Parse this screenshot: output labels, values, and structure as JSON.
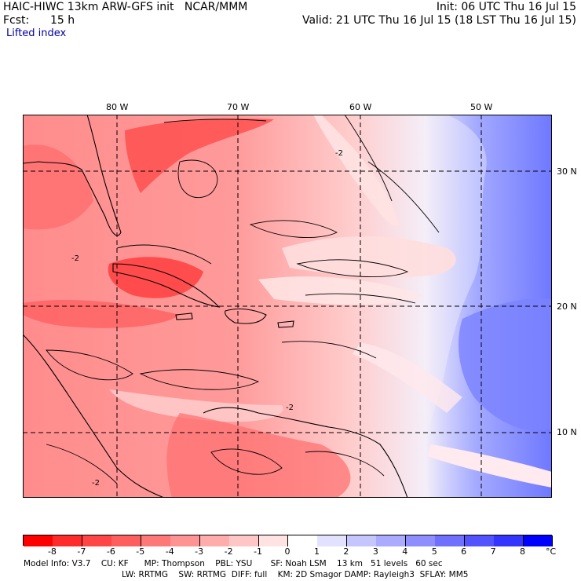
{
  "header": {
    "title_left": "HAIC-HIWC 13km ARW-GFS init   NCAR/MMM",
    "fcst_label": "Fcst:",
    "fcst_value": "15 h",
    "field_name": "Lifted index",
    "init": "Init: 06 UTC Thu 16 Jul 15",
    "valid": "Valid: 21 UTC Thu 16 Jul 15 (18 LST Thu 16 Jul 15)"
  },
  "map": {
    "lon_labels": [
      "80 W",
      "70 W",
      "60 W",
      "50 W"
    ],
    "lat_labels": [
      "30 N",
      "20 N",
      "10 N"
    ],
    "contour_label": "-2"
  },
  "colorbar": {
    "ticks": [
      "-8",
      "-7",
      "-6",
      "-5",
      "-4",
      "-3",
      "-2",
      "-1",
      "0",
      "1",
      "2",
      "3",
      "4",
      "5",
      "6",
      "7",
      "8"
    ],
    "unit": "°C",
    "colors": [
      "#ff0000",
      "#ff2a2a",
      "#ff4545",
      "#ff5e5e",
      "#ff7878",
      "#ff9292",
      "#ffacac",
      "#ffc6c6",
      "#ffe2e2",
      "#ffffff",
      "#e2e2ff",
      "#c6c6ff",
      "#aaaaff",
      "#8e8eff",
      "#7070ff",
      "#5252ff",
      "#3434ff",
      "#0000ff"
    ]
  },
  "footer": {
    "line1": "Model Info: V3.7    CU: KF      MP: Thompson    PBL: YSU       SF: Noah LSM    13 km   51 levels   60 sec",
    "line2": "LW: RRTMG    SW: RRTMG  DIFF: full    KM: 2D Smagor DAMP: Rayleigh3  SFLAY: MM5"
  }
}
